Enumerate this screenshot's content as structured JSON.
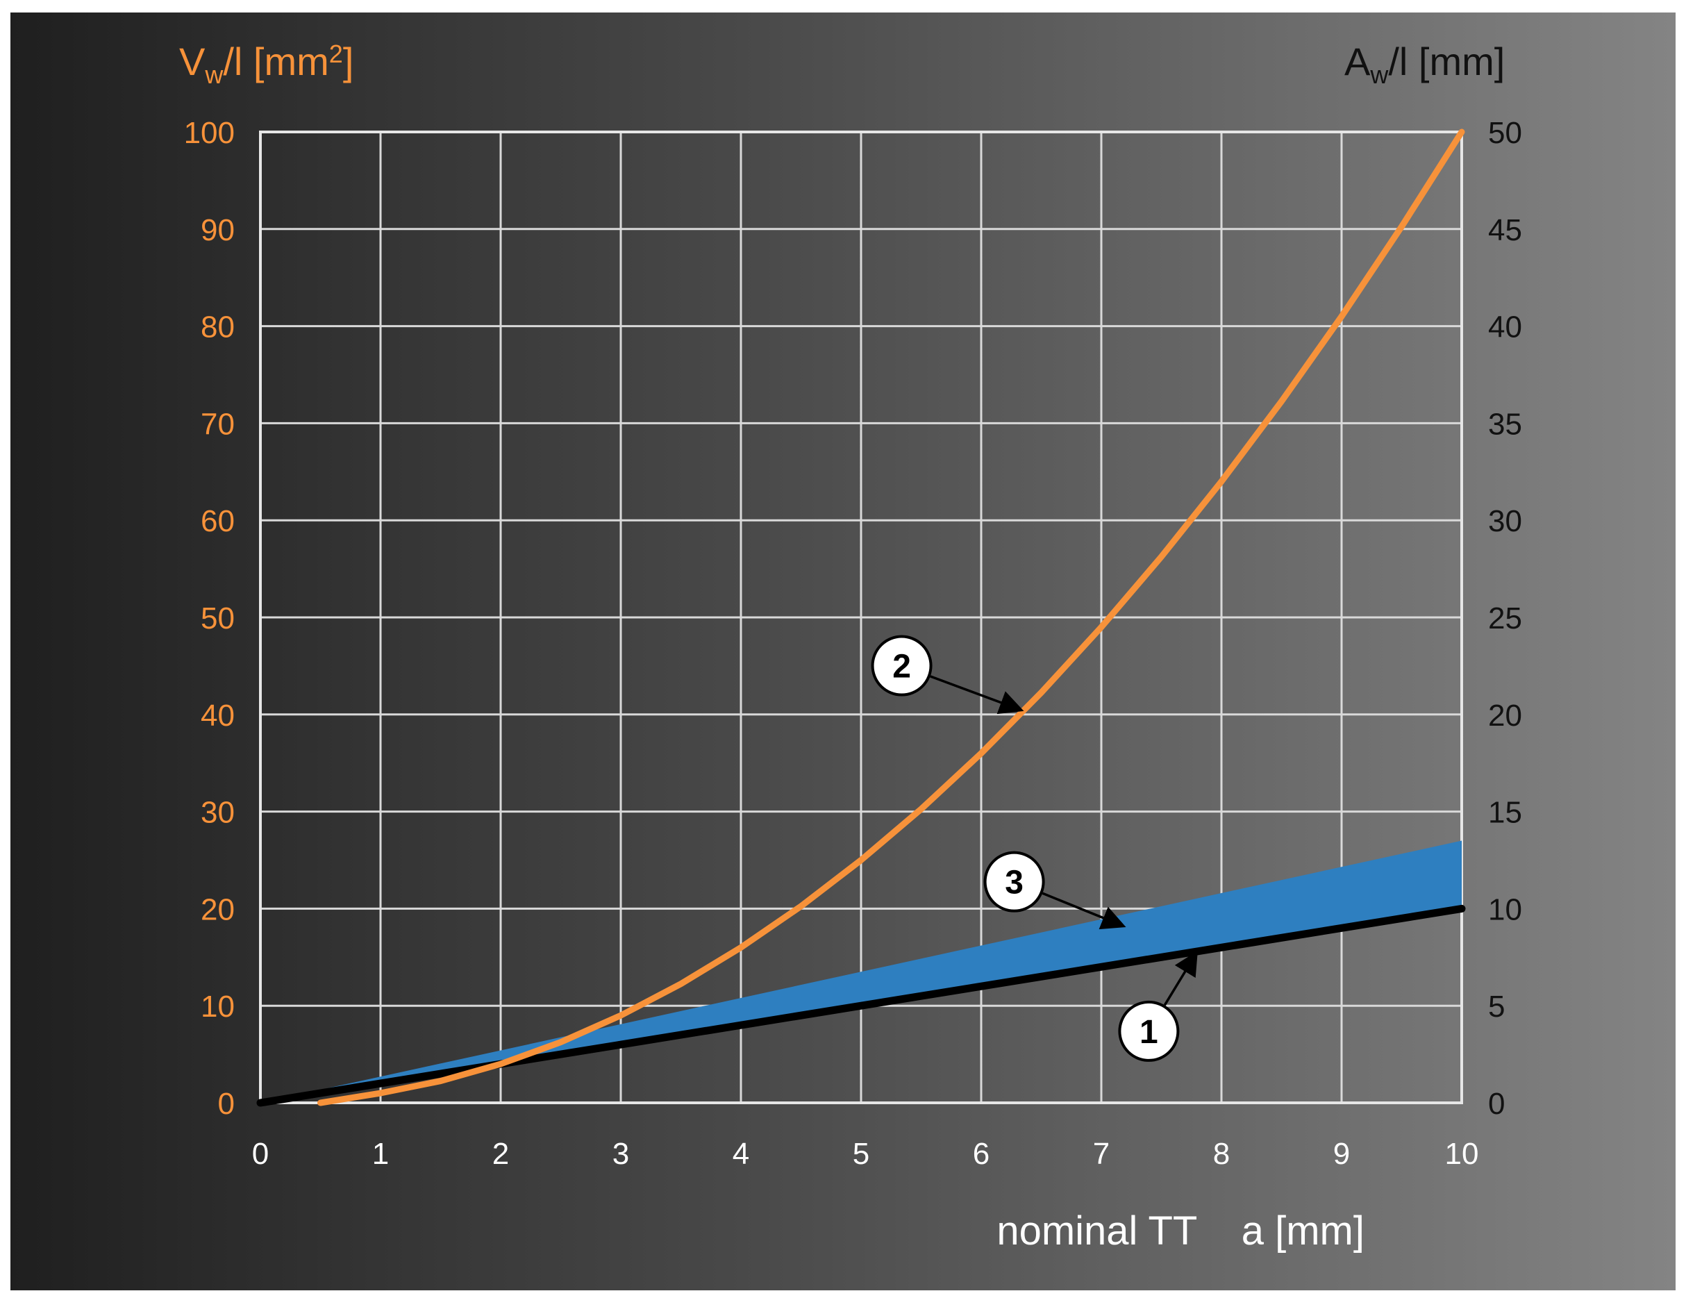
{
  "chart_data": {
    "type": "line",
    "xlabel": "nominal TT    a [mm]",
    "x_ticks": [
      "0",
      "1",
      "2",
      "3",
      "4",
      "5",
      "6",
      "7",
      "8",
      "9",
      "10"
    ],
    "xlim": [
      0,
      10
    ],
    "y_left": {
      "label_main": "V",
      "label_sub": "w",
      "label_tail": "/l [mm",
      "label_sup": "2",
      "label_end": "]",
      "ticks": [
        "0",
        "10",
        "20",
        "30",
        "40",
        "50",
        "60",
        "70",
        "80",
        "90",
        "100"
      ],
      "lim": [
        0,
        100
      ],
      "color": "#F7923A"
    },
    "y_right": {
      "label_main": "A",
      "label_sub": "w",
      "label_tail": "/l [mm]",
      "ticks": [
        "0",
        "5",
        "10",
        "15",
        "20",
        "25",
        "30",
        "35",
        "40",
        "45",
        "50"
      ],
      "lim": [
        0,
        50
      ],
      "color": "#111111"
    },
    "grid": true,
    "series": [
      {
        "marker": "1",
        "axis": "right",
        "color": "#000000",
        "x": [
          0,
          10
        ],
        "y": [
          0,
          10
        ]
      },
      {
        "marker": "2",
        "axis": "left",
        "color": "#F7923A",
        "x": [
          0.5,
          1,
          1.5,
          2,
          2.5,
          3,
          3.5,
          4,
          4.5,
          5,
          5.5,
          6,
          6.5,
          7,
          7.5,
          8,
          8.5,
          9,
          9.5,
          10
        ],
        "y": [
          0,
          1,
          2.25,
          4,
          6.25,
          9,
          12.25,
          16,
          20.25,
          25,
          30.25,
          36,
          42.25,
          49,
          56.25,
          64,
          72.25,
          81,
          90.25,
          100
        ]
      },
      {
        "marker": "3",
        "axis": "right",
        "type": "area_band",
        "color": "#2E7FC0",
        "x": [
          0,
          10
        ],
        "y_low": [
          0,
          10
        ],
        "y_high": [
          0,
          13.5
        ]
      }
    ],
    "annotations": [
      {
        "label": "1",
        "target_series": "1"
      },
      {
        "label": "2",
        "target_series": "2"
      },
      {
        "label": "3",
        "target_series": "3"
      }
    ]
  }
}
